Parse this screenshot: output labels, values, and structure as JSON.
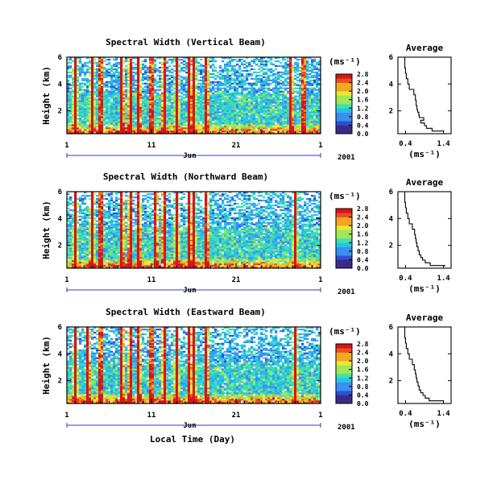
{
  "figure": {
    "x_label": "Local Time (Day)",
    "month_label": "Jun",
    "year_label": "2001"
  },
  "colors": {
    "scale": [
      "#3b2a88",
      "#2d4fd6",
      "#3c8ef0",
      "#27c3e6",
      "#3fe0b0",
      "#9ee85a",
      "#e8e83a",
      "#f5a623",
      "#ef4b22",
      "#d2171b"
    ],
    "line": "#000000",
    "frame": "#000000"
  },
  "chart_data": [
    {
      "type": "heatmap",
      "title": "Spectral Width (Vertical Beam)",
      "ylabel": "Height (km)",
      "xlabel": "Local Time (Day)",
      "x_ticks": [
        "1",
        "11",
        "21",
        "1"
      ],
      "y_ticks": [
        "2",
        "4",
        "6"
      ],
      "xlim": [
        1,
        31
      ],
      "ylim": [
        0.3,
        6
      ],
      "colorbar_unit": "(ms⁻¹)",
      "colorbar_ticks": [
        "0.0",
        "0.4",
        "0.8",
        "1.2",
        "1.6",
        "2.0",
        "2.4",
        "2.8"
      ],
      "colorbar_range": [
        0.0,
        2.8
      ],
      "spike_days": [
        2,
        4,
        5,
        7.5,
        8.5,
        9.5,
        11,
        12.5,
        14,
        15.5,
        16,
        17.5,
        27.5,
        29
      ],
      "sub_title": "Average",
      "sub_xlabel": "(ms⁻¹)",
      "sub_x_ticks": [
        "0.4",
        "1.4"
      ],
      "sub_y_ticks": [
        "2",
        "4",
        "6"
      ],
      "sub_xlim": [
        0.2,
        1.6
      ],
      "sub_ylim": [
        0.3,
        6
      ],
      "profile_height": [
        0.5,
        0.7,
        0.9,
        1.1,
        1.3,
        1.5,
        1.7,
        1.9,
        2.1,
        2.4,
        2.8,
        3.2,
        3.6,
        4.0,
        4.4,
        4.8,
        5.2,
        5.6,
        6.0
      ],
      "profile_width": [
        1.42,
        1.1,
        0.95,
        0.9,
        0.8,
        0.88,
        0.76,
        0.75,
        0.72,
        0.7,
        0.68,
        0.66,
        0.62,
        0.5,
        0.46,
        0.42,
        0.4,
        0.38,
        0.38
      ]
    },
    {
      "type": "heatmap",
      "title": "Spectral Width (Northward Beam)",
      "ylabel": "Height (km)",
      "xlabel": "Local Time (Day)",
      "x_ticks": [
        "1",
        "11",
        "21",
        "1"
      ],
      "y_ticks": [
        "2",
        "4",
        "6"
      ],
      "xlim": [
        1,
        31
      ],
      "ylim": [
        0.3,
        6
      ],
      "colorbar_unit": "(ms⁻¹)",
      "colorbar_ticks": [
        "0.0",
        "0.4",
        "0.8",
        "1.2",
        "1.6",
        "2.0",
        "2.4",
        "2.8"
      ],
      "colorbar_range": [
        0.0,
        2.8
      ],
      "spike_days": [
        2,
        4,
        5,
        7.5,
        8.5,
        9.5,
        11.5,
        12.5,
        14,
        15.5,
        16,
        17.5,
        28
      ],
      "sub_title": "Average",
      "sub_xlabel": "(ms⁻¹)",
      "sub_x_ticks": [
        "0.4",
        "1.4"
      ],
      "sub_y_ticks": [
        "2",
        "4",
        "6"
      ],
      "sub_xlim": [
        0.2,
        1.6
      ],
      "sub_ylim": [
        0.3,
        6
      ],
      "profile_height": [
        0.5,
        0.7,
        0.9,
        1.1,
        1.3,
        1.6,
        1.9,
        2.2,
        2.5,
        2.8,
        3.2,
        3.6,
        4.0,
        4.4,
        4.8,
        5.2,
        5.6,
        6.0
      ],
      "profile_width": [
        1.45,
        1.05,
        0.92,
        0.85,
        0.8,
        0.76,
        0.73,
        0.7,
        0.68,
        0.66,
        0.64,
        0.58,
        0.5,
        0.46,
        0.42,
        0.4,
        0.38,
        0.38
      ]
    },
    {
      "type": "heatmap",
      "title": "Spectral Width (Eastward Beam)",
      "ylabel": "Height (km)",
      "xlabel": "Local Time (Day)",
      "x_ticks": [
        "1",
        "11",
        "21",
        "1"
      ],
      "y_ticks": [
        "2",
        "4",
        "6"
      ],
      "xlim": [
        1,
        31
      ],
      "ylim": [
        0.3,
        6
      ],
      "colorbar_unit": "(ms⁻¹)",
      "colorbar_ticks": [
        "0.0",
        "0.4",
        "0.8",
        "1.2",
        "1.6",
        "2.0",
        "2.4",
        "2.8"
      ],
      "colorbar_range": [
        0.0,
        2.8
      ],
      "spike_days": [
        2,
        3.5,
        5,
        7.5,
        8.5,
        9.5,
        11,
        12.5,
        14,
        15.5,
        16,
        17.5,
        28
      ],
      "sub_title": "Average",
      "sub_xlabel": "(ms⁻¹)",
      "sub_x_ticks": [
        "0.4",
        "1.4"
      ],
      "sub_y_ticks": [
        "2",
        "4",
        "6"
      ],
      "sub_xlim": [
        0.2,
        1.6
      ],
      "sub_ylim": [
        0.3,
        6
      ],
      "profile_height": [
        0.5,
        0.7,
        0.9,
        1.1,
        1.3,
        1.6,
        1.9,
        2.2,
        2.5,
        2.8,
        3.2,
        3.6,
        4.0,
        4.4,
        4.8,
        5.2,
        5.6,
        6.0
      ],
      "profile_width": [
        1.4,
        1.02,
        0.92,
        0.86,
        0.8,
        0.76,
        0.73,
        0.7,
        0.68,
        0.66,
        0.63,
        0.58,
        0.5,
        0.46,
        0.42,
        0.4,
        0.38,
        0.38
      ]
    }
  ]
}
